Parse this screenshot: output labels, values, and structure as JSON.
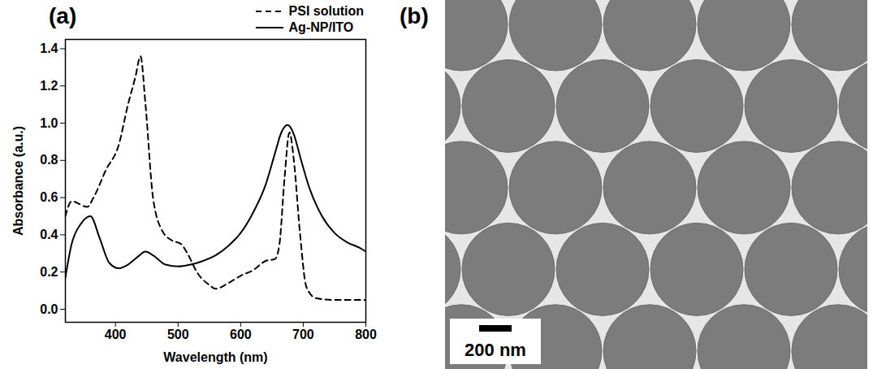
{
  "chart_data": {
    "type": "line",
    "title": "(a)",
    "x_label": "Wavelength (nm)",
    "y_label": "Absorbance (a.u.)",
    "xlim": [
      320,
      800
    ],
    "xticks": [
      400,
      500,
      600,
      700,
      800
    ],
    "ylim": [
      -0.07,
      1.45
    ],
    "yticks": [
      {
        "value": 0,
        "label": "0.0"
      },
      {
        "value": 0.2,
        "label": "0.2"
      },
      {
        "value": 0.4,
        "label": "0.4"
      },
      {
        "value": 0.6,
        "label": "0.6"
      },
      {
        "value": 0.8,
        "label": "0.8"
      },
      {
        "value": 1.0,
        "label": "1.0"
      },
      {
        "value": 1.2,
        "label": "1.2"
      },
      {
        "value": 1.4,
        "label": "1.4"
      }
    ],
    "legend": "top-right",
    "series": [
      {
        "name": "PSI solution",
        "color": "#000000",
        "line_style": "dashed",
        "x": [
          320,
          330,
          355,
          365,
          385,
          405,
          420,
          432,
          440,
          448,
          460,
          475,
          490,
          505,
          515,
          530,
          550,
          560,
          580,
          600,
          620,
          640,
          655,
          662,
          670,
          678,
          685,
          695,
          705,
          720,
          750,
          800
        ],
        "values": [
          0.5,
          0.58,
          0.55,
          0.6,
          0.75,
          0.88,
          1.1,
          1.25,
          1.36,
          1.1,
          0.6,
          0.42,
          0.37,
          0.35,
          0.3,
          0.2,
          0.13,
          0.11,
          0.14,
          0.18,
          0.21,
          0.26,
          0.27,
          0.35,
          0.7,
          0.95,
          0.8,
          0.4,
          0.12,
          0.06,
          0.05,
          0.05
        ]
      },
      {
        "name": "Ag-NP/ITO",
        "color": "#000000",
        "line_style": "solid",
        "x": [
          320,
          330,
          345,
          360,
          375,
          390,
          405,
          420,
          435,
          448,
          460,
          480,
          500,
          520,
          540,
          560,
          580,
          600,
          620,
          640,
          655,
          665,
          675,
          685,
          695,
          710,
          730,
          750,
          770,
          790,
          800
        ],
        "values": [
          0.17,
          0.35,
          0.46,
          0.5,
          0.38,
          0.25,
          0.22,
          0.24,
          0.28,
          0.31,
          0.29,
          0.24,
          0.23,
          0.24,
          0.26,
          0.29,
          0.34,
          0.41,
          0.52,
          0.67,
          0.84,
          0.95,
          0.99,
          0.94,
          0.82,
          0.65,
          0.5,
          0.41,
          0.36,
          0.33,
          0.31
        ]
      }
    ]
  },
  "image_panel": {
    "label": "(b)",
    "scale_bar": "200 nm"
  }
}
